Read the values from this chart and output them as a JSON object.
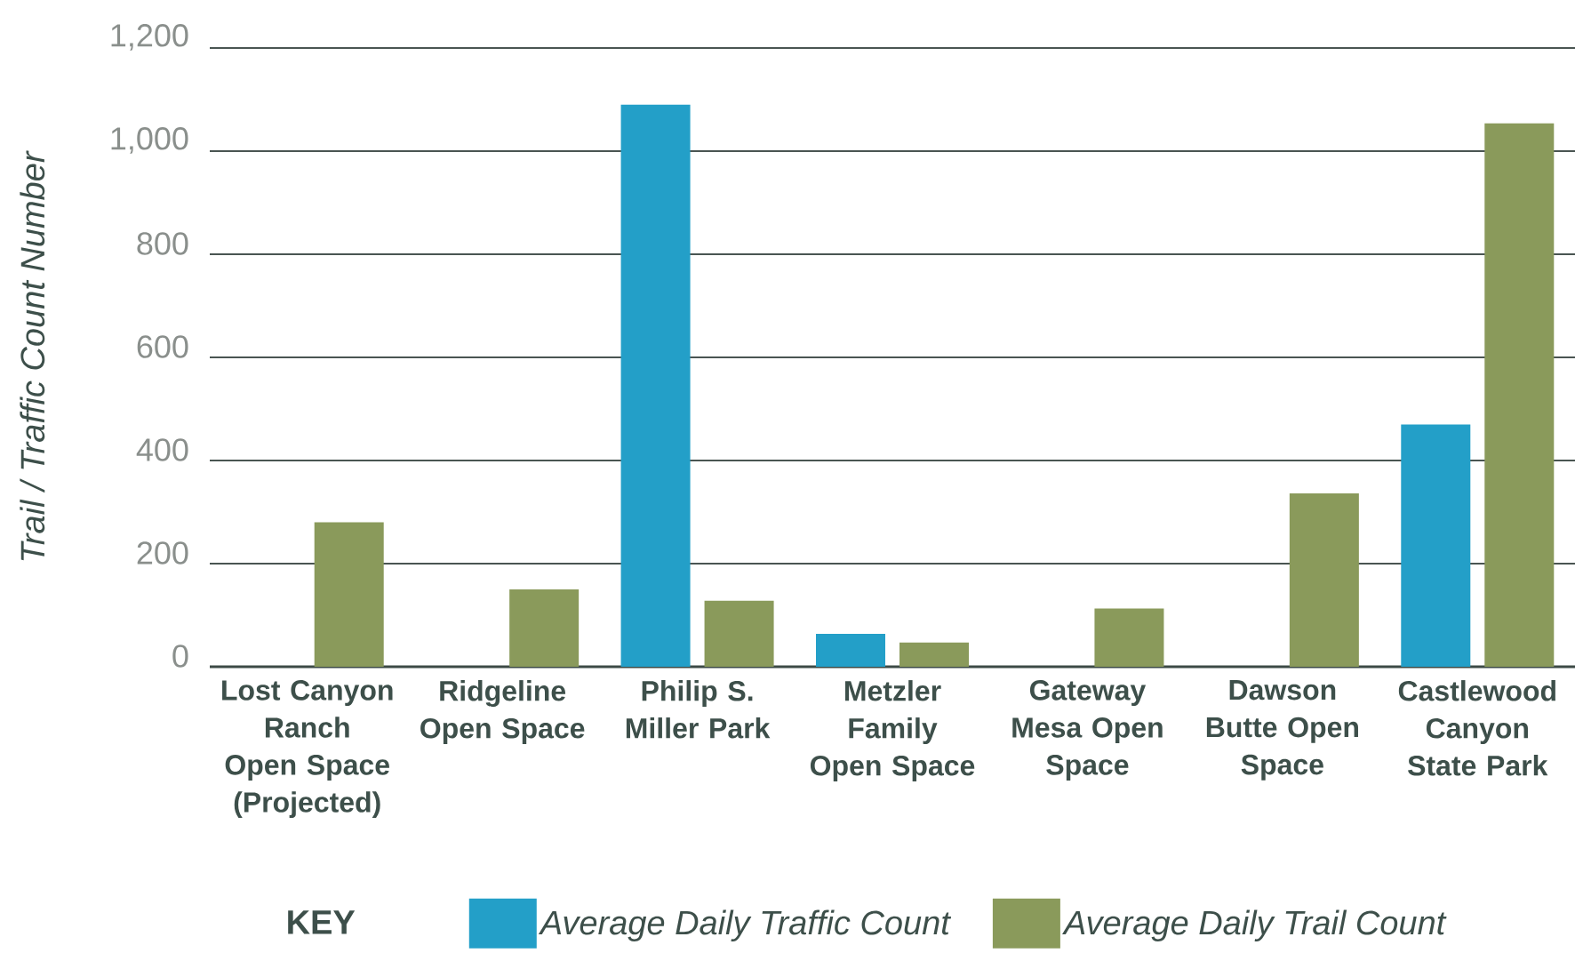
{
  "chart_data": {
    "type": "bar",
    "ylabel": "Trail / Traffic Count Number",
    "legend_title": "KEY",
    "categories": [
      "Lost Canyon Ranch Open Space (Projected)",
      "Ridgeline Open Space",
      "Philip S. Miller Park",
      "Metzler Family Open Space",
      "Gateway Mesa Open Space",
      "Dawson Butte Open Space",
      "Castlewood Canyon State Park"
    ],
    "series": [
      {
        "name": "Average Daily Traffic Count",
        "color": "#239fc8",
        "values": [
          null,
          null,
          1090,
          64,
          null,
          null,
          470
        ]
      },
      {
        "name": "Average Daily Trail Count",
        "color": "#8a9a5b",
        "values": [
          280,
          150,
          128,
          47,
          113,
          336,
          1054
        ]
      }
    ],
    "ylim": [
      0,
      1200
    ],
    "yticks": [
      0,
      200,
      400,
      600,
      800,
      {
        "value": 1000,
        "label": "1,000"
      },
      {
        "value": 1200,
        "label": "1,200"
      }
    ],
    "grid": "y",
    "legend": "bottom"
  }
}
